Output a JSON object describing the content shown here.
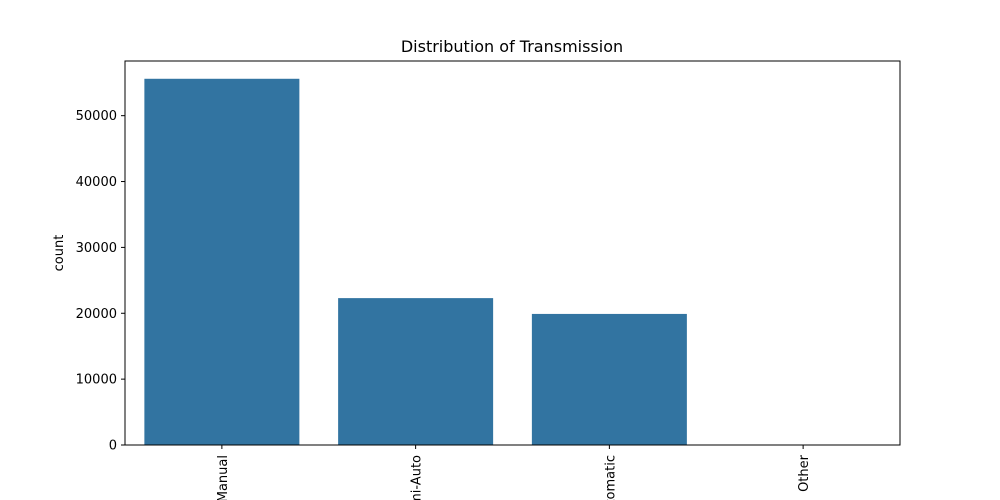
{
  "chart_data": {
    "type": "bar",
    "title": "Distribution of Transmission",
    "xlabel": "",
    "ylabel": "count",
    "categories": [
      "Manual",
      "Semi-Auto",
      "Automatic",
      "Other"
    ],
    "values": [
      55600,
      22300,
      19900,
      10
    ],
    "ylim": [
      0,
      58300
    ],
    "yticks": [
      0,
      10000,
      20000,
      30000,
      40000,
      50000
    ],
    "ytick_labels": [
      "0",
      "10000",
      "20000",
      "30000",
      "40000",
      "50000"
    ],
    "bar_color": "#3274a1",
    "grid": false,
    "legend": "none"
  }
}
